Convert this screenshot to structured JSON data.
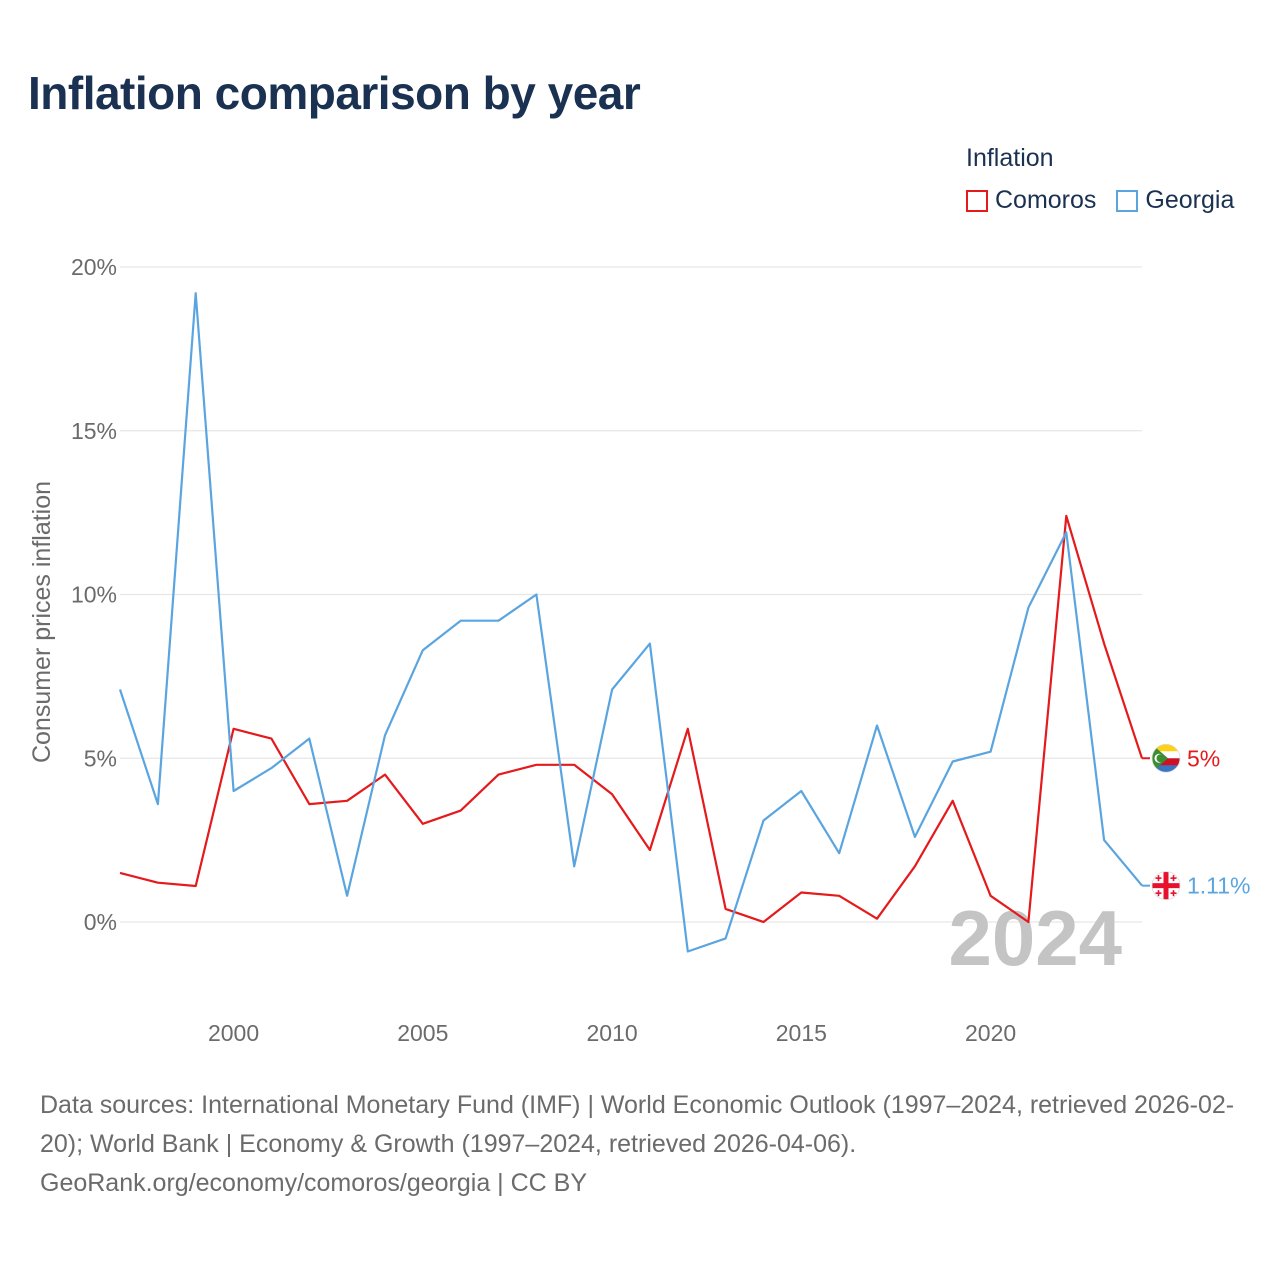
{
  "chart_data": {
    "type": "line",
    "title": "Inflation comparison by year",
    "ylabel": "Consumer prices inflation",
    "xlabel": "",
    "ylim": [
      -2.6,
      20
    ],
    "xlim": [
      1997,
      2024
    ],
    "yticks": [
      0,
      5,
      10,
      15,
      20
    ],
    "ytick_labels": [
      "0%",
      "5%",
      "10%",
      "15%",
      "20%"
    ],
    "xticks": [
      2000,
      2005,
      2010,
      2015,
      2020
    ],
    "xtick_labels": [
      "2000",
      "2005",
      "2010",
      "2015",
      "2020"
    ],
    "legend_title": "Inflation",
    "legend_position": "top-right",
    "current_year": "2024",
    "x": [
      1997,
      1998,
      1999,
      2000,
      2001,
      2002,
      2003,
      2004,
      2005,
      2006,
      2007,
      2008,
      2009,
      2010,
      2011,
      2012,
      2013,
      2014,
      2015,
      2016,
      2017,
      2018,
      2019,
      2020,
      2021,
      2022,
      2023,
      2024
    ],
    "series": [
      {
        "name": "Comoros",
        "color": "#e41a1c",
        "end_label": "5%",
        "flag_icon": "comoros-flag-icon",
        "values": [
          1.5,
          1.2,
          1.1,
          5.9,
          5.6,
          3.6,
          3.7,
          4.5,
          3.0,
          3.4,
          4.5,
          4.8,
          4.8,
          3.9,
          2.2,
          5.9,
          0.4,
          0.0,
          0.9,
          0.8,
          0.1,
          1.7,
          3.7,
          0.8,
          0.0,
          12.4,
          8.5,
          5.0
        ]
      },
      {
        "name": "Georgia",
        "color": "#5aa5e0",
        "end_label": "1.11%",
        "flag_icon": "georgia-flag-icon",
        "values": [
          7.1,
          3.6,
          19.2,
          4.0,
          4.7,
          5.6,
          0.8,
          5.7,
          8.3,
          9.2,
          9.2,
          10.0,
          1.7,
          7.1,
          8.5,
          -0.9,
          -0.5,
          3.1,
          4.0,
          2.1,
          6.0,
          2.6,
          4.9,
          5.2,
          9.6,
          11.9,
          2.5,
          1.11
        ]
      }
    ]
  },
  "footer": {
    "line1": "Data sources: International Monetary Fund (IMF) | World Economic Outlook (1997–2024, retrieved 2026-02-20); World Bank | Economy & Growth (1997–2024, retrieved 2026-04-06).",
    "line2": "GeoRank.org/economy/comoros/georgia | CC BY"
  }
}
